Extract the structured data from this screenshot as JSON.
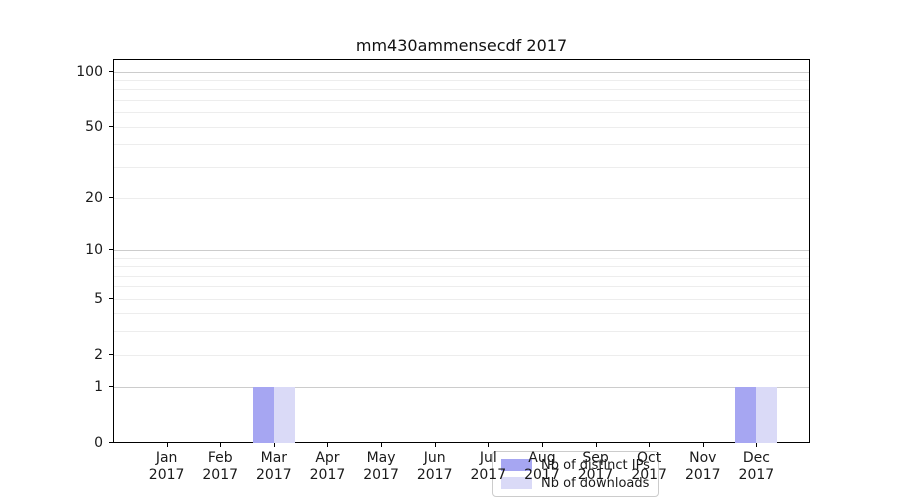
{
  "chart_data": {
    "type": "bar",
    "title": "mm430ammensecdf 2017",
    "categories": [
      "Jan",
      "Feb",
      "Mar",
      "Apr",
      "May",
      "Jun",
      "Jul",
      "Aug",
      "Sep",
      "Oct",
      "Nov",
      "Dec"
    ],
    "category_year_label": "2017",
    "series": [
      {
        "name": "Nb of distinct IPs",
        "color": "#a6a6f2",
        "values": [
          0,
          0,
          1,
          0,
          0,
          0,
          0,
          0,
          0,
          0,
          0,
          1
        ]
      },
      {
        "name": "Nb of downloads",
        "color": "#dadaf7",
        "values": [
          0,
          0,
          1,
          0,
          0,
          0,
          0,
          0,
          0,
          0,
          0,
          1
        ]
      }
    ],
    "yscale": "log1p",
    "ylim": [
      0,
      117
    ],
    "yticks": [
      0,
      1,
      2,
      5,
      10,
      20,
      50,
      100
    ],
    "ygrid_major": [
      1,
      10,
      100
    ],
    "ygrid_minor": [
      2,
      3,
      4,
      5,
      6,
      7,
      8,
      9,
      20,
      30,
      40,
      50,
      60,
      70,
      80,
      90
    ],
    "grid": "horizontal",
    "legend_position": "lower center",
    "colors": {
      "axis": "#000000",
      "grid_major": "#cccccc",
      "grid_minor": "#ededed",
      "text": "#1a1a1a"
    }
  }
}
